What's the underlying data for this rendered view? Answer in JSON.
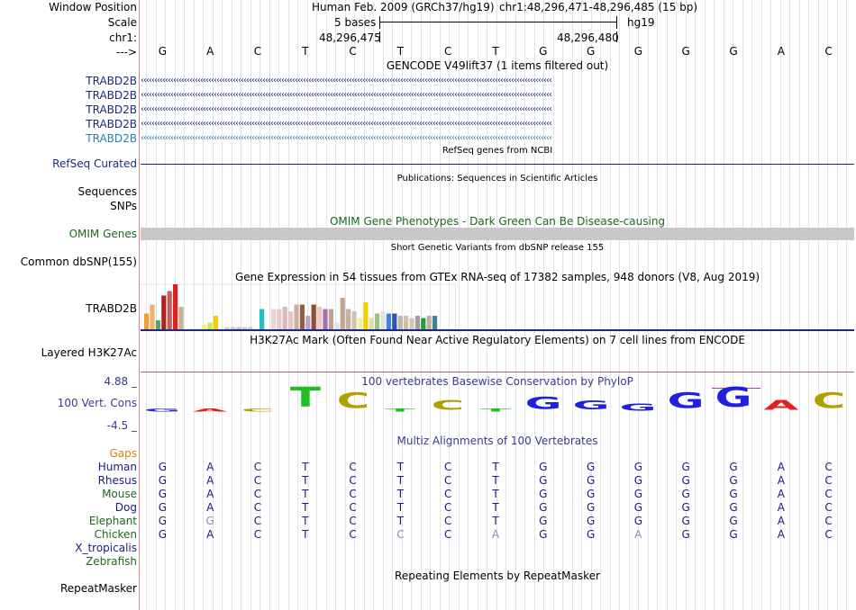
{
  "header": {
    "window_position_label": "Window Position",
    "scale_label": "Scale",
    "chrom_label": "chr1:",
    "arrow_label": "--->",
    "assembly": "Human Feb. 2009 (GRCh37/hg19)",
    "position": "chr1:48,296,471-48,296,485 (15 bp)",
    "scale_text": "5 bases",
    "db": "hg19",
    "coord_left": "48,296,475",
    "coord_right": "48,296,480"
  },
  "sequence": [
    "G",
    "A",
    "C",
    "T",
    "C",
    "T",
    "C",
    "T",
    "G",
    "G",
    "G",
    "G",
    "G",
    "A",
    "C"
  ],
  "tracks": {
    "gencode_title": "GENCODE V49lift37 (1 items filtered out)",
    "gencode_items": [
      {
        "name": "TRABD2B",
        "color": "#1a2a80"
      },
      {
        "name": "TRABD2B",
        "color": "#1a2a80"
      },
      {
        "name": "TRABD2B",
        "color": "#1a2a80"
      },
      {
        "name": "TRABD2B",
        "color": "#1a2a80"
      },
      {
        "name": "TRABD2B",
        "color": "#2a80b0"
      }
    ],
    "gencode_arrows": "‹‹‹‹‹‹‹‹‹‹‹‹‹‹‹‹‹‹‹‹‹‹‹‹‹‹‹‹‹‹‹‹‹‹‹‹‹‹‹‹‹‹‹‹‹‹‹‹‹‹‹‹‹‹‹‹‹‹‹‹‹‹‹‹‹‹‹‹‹‹‹‹‹‹‹‹‹‹‹‹‹‹‹‹‹‹‹‹‹‹‹‹‹‹‹‹‹‹‹‹‹‹‹‹‹‹‹‹‹‹‹‹‹‹‹‹‹‹‹‹‹‹‹‹‹‹‹‹‹‹‹‹‹‹‹‹‹‹‹‹‹‹‹‹‹‹‹‹‹‹‹‹",
    "refseq_title": "RefSeq genes from NCBI",
    "refseq_label": "RefSeq Curated",
    "pubs_title": "Publications: Sequences in Scientific Articles",
    "sequences_label": "Sequences",
    "snps_label": "SNPs",
    "omim_title": "OMIM Gene Phenotypes - Dark Green Can Be Disease-causing",
    "omim_label": "OMIM Genes",
    "dbsnp_title": "Short Genetic Variants from dbSNP release 155",
    "dbsnp_label": "Common dbSNP(155)",
    "gtex_title": "Gene Expression in 54 tissues from GTEx RNA-seq of 17382 samples, 948 donors (V8, Aug 2019)",
    "gtex_label": "TRABD2B",
    "h3k27_title": "H3K27Ac Mark (Often Found Near Active Regulatory Elements) on 7 cell lines from ENCODE",
    "h3k27_label": "Layered H3K27Ac",
    "cons_title": "100 vertebrates Basewise Conservation by PhyloP",
    "cons_label": "100 Vert. Cons",
    "cons_max": "4.88 _",
    "cons_min": "-4.5 _",
    "multiz_title": "Multiz Alignments of 100 Vertebrates",
    "gaps_label": "Gaps",
    "repeat_title": "Repeating Elements by RepeatMasker",
    "repeat_label": "RepeatMasker"
  },
  "gtex_values": [
    {
      "v": 0.35,
      "c": "#f0a030"
    },
    {
      "v": 0.55,
      "c": "#f0b070"
    },
    {
      "v": 0.2,
      "c": "#60a060"
    },
    {
      "v": 0.75,
      "c": "#b02020"
    },
    {
      "v": 0.85,
      "c": "#c06060"
    },
    {
      "v": 1.0,
      "c": "#e02020"
    },
    {
      "v": 0.5,
      "c": "#c8b090"
    },
    {
      "v": 0.0,
      "c": "#ffffff"
    },
    {
      "v": 0.0,
      "c": "#ffffff"
    },
    {
      "v": 0.0,
      "c": "#ffffff"
    },
    {
      "v": 0.1,
      "c": "#f0f080"
    },
    {
      "v": 0.15,
      "c": "#d0e060"
    },
    {
      "v": 0.3,
      "c": "#f0d000"
    },
    {
      "v": 0.0,
      "c": "#ffffff"
    },
    {
      "v": 0.05,
      "c": "#d0d0d0"
    },
    {
      "v": 0.05,
      "c": "#e0c0c0"
    },
    {
      "v": 0.05,
      "c": "#c0c0c0"
    },
    {
      "v": 0.05,
      "c": "#d0d0a0"
    },
    {
      "v": 0.05,
      "c": "#c0d0c0"
    },
    {
      "v": 0.0,
      "c": "#ffffff"
    },
    {
      "v": 0.45,
      "c": "#20c0c0"
    },
    {
      "v": 0.0,
      "c": "#ffffff"
    },
    {
      "v": 0.45,
      "c": "#f0d0d0"
    },
    {
      "v": 0.45,
      "c": "#e8c8c8"
    },
    {
      "v": 0.5,
      "c": "#d8b8b8"
    },
    {
      "v": 0.4,
      "c": "#e0c8c8"
    },
    {
      "v": 0.55,
      "c": "#c8b0a0"
    },
    {
      "v": 0.55,
      "c": "#906040"
    },
    {
      "v": 0.3,
      "c": "#c0a0c0"
    },
    {
      "v": 0.55,
      "c": "#905030"
    },
    {
      "v": 0.5,
      "c": "#f0c8c0"
    },
    {
      "v": 0.45,
      "c": "#a070b0"
    },
    {
      "v": 0.45,
      "c": "#c0a090"
    },
    {
      "v": 0.15,
      "c": "#e0e0e0"
    },
    {
      "v": 0.7,
      "c": "#c0a890"
    },
    {
      "v": 0.45,
      "c": "#c8b0a0"
    },
    {
      "v": 0.4,
      "c": "#d0c0b0"
    },
    {
      "v": 0.25,
      "c": "#f0f0a0"
    },
    {
      "v": 0.6,
      "c": "#f0d000"
    },
    {
      "v": 0.25,
      "c": "#e0d8b0"
    },
    {
      "v": 0.35,
      "c": "#a0c080"
    },
    {
      "v": 0.4,
      "c": "#e0e0e0"
    },
    {
      "v": 0.35,
      "c": "#4080e0"
    },
    {
      "v": 0.35,
      "c": "#3050c0"
    },
    {
      "v": 0.3,
      "c": "#c0b8a0"
    },
    {
      "v": 0.3,
      "c": "#c8c0a8"
    },
    {
      "v": 0.25,
      "c": "#d0c8b0"
    },
    {
      "v": 0.3,
      "c": "#a0a0a0"
    },
    {
      "v": 0.25,
      "c": "#20a040"
    },
    {
      "v": 0.3,
      "c": "#c0b0a0"
    },
    {
      "v": 0.3,
      "c": "#4080a0"
    },
    {
      "v": 0.0,
      "c": "#ffffff"
    },
    {
      "v": 0.0,
      "c": "#ffffff"
    },
    {
      "v": 0.0,
      "c": "#ffffff"
    }
  ],
  "conservation": [
    {
      "b": "G",
      "h": 0.1,
      "c": "#3030c0"
    },
    {
      "b": "A",
      "h": 0.1,
      "c": "#e02020"
    },
    {
      "b": "C",
      "h": 0.1,
      "c": "#b0a000"
    },
    {
      "b": "T",
      "h": 0.9,
      "c": "#20c020"
    },
    {
      "b": "C",
      "h": 0.7,
      "c": "#b0a000"
    },
    {
      "b": "T",
      "h": 0.12,
      "c": "#20c020"
    },
    {
      "b": "C",
      "h": 0.45,
      "c": "#b0a000"
    },
    {
      "b": "T",
      "h": 0.12,
      "c": "#20c020"
    },
    {
      "b": "G",
      "h": 0.55,
      "c": "#2020e0"
    },
    {
      "b": "G",
      "h": 0.4,
      "c": "#2020e0"
    },
    {
      "b": "G",
      "h": 0.3,
      "c": "#2020e0"
    },
    {
      "b": "G",
      "h": 0.7,
      "c": "#2020e0"
    },
    {
      "b": "G",
      "h": 0.9,
      "c": "#2020e0"
    },
    {
      "b": "A",
      "h": 0.45,
      "c": "#e02020"
    },
    {
      "b": "C",
      "h": 0.7,
      "c": "#b0a000"
    }
  ],
  "species": [
    {
      "name": "Human",
      "color": "#1a1a80",
      "bases": [
        "G",
        "A",
        "C",
        "T",
        "C",
        "T",
        "C",
        "T",
        "G",
        "G",
        "G",
        "G",
        "G",
        "A",
        "C"
      ],
      "muted": []
    },
    {
      "name": "Rhesus",
      "color": "#1a1a80",
      "bases": [
        "G",
        "A",
        "C",
        "T",
        "C",
        "T",
        "C",
        "T",
        "G",
        "G",
        "G",
        "G",
        "G",
        "A",
        "C"
      ],
      "muted": []
    },
    {
      "name": "Mouse",
      "color": "#1a6a1a",
      "bases": [
        "G",
        "A",
        "C",
        "T",
        "C",
        "T",
        "C",
        "T",
        "G",
        "G",
        "G",
        "G",
        "G",
        "A",
        "C"
      ],
      "muted": []
    },
    {
      "name": "Dog",
      "color": "#1a1a80",
      "bases": [
        "G",
        "A",
        "C",
        "T",
        "C",
        "T",
        "C",
        "T",
        "G",
        "G",
        "G",
        "G",
        "G",
        "A",
        "C"
      ],
      "muted": []
    },
    {
      "name": "Elephant",
      "color": "#1a6a1a",
      "bases": [
        "G",
        "G",
        "C",
        "T",
        "C",
        "T",
        "C",
        "T",
        "G",
        "G",
        "G",
        "G",
        "G",
        "A",
        "C"
      ],
      "muted": [
        1
      ]
    },
    {
      "name": "Chicken",
      "color": "#1a6a1a",
      "bases": [
        "G",
        "A",
        "C",
        "T",
        "C",
        "C",
        "C",
        "A",
        "G",
        "G",
        "A",
        "G",
        "G",
        "A",
        "C"
      ],
      "muted": [
        5,
        7,
        10
      ]
    },
    {
      "name": "X_tropicalis",
      "color": "#1a1a80",
      "bases": [],
      "muted": []
    },
    {
      "name": "Zebrafish",
      "color": "#1a6a1a",
      "bases": [],
      "muted": []
    }
  ],
  "colors": {
    "blue_link": "#1a2a80",
    "omim_green": "#1a6a1a",
    "gaps_orange": "#e08000",
    "omim_bar": "#c8c8c8",
    "h3k27_line": "#c06060",
    "cons_title": "#3a3a90"
  }
}
